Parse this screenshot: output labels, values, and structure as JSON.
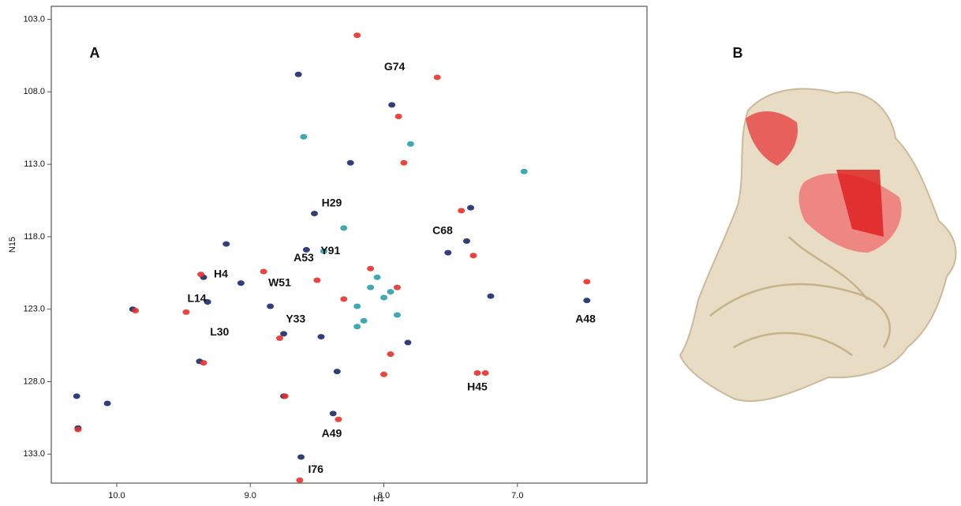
{
  "chart_data": {
    "type": "scatter",
    "panel_label": "A",
    "xlabel": "H1",
    "ylabel": "N15",
    "xlim": [
      10.49,
      6.03
    ],
    "ylim": [
      102.1,
      135.0
    ],
    "xticks": [
      {
        "value": 10,
        "label": "10.0"
      },
      {
        "value": 9,
        "label": "9.0"
      },
      {
        "value": 8,
        "label": "8.0"
      },
      {
        "value": 7,
        "label": "7.0"
      }
    ],
    "yticks": [
      {
        "value": 103,
        "label": "103.0"
      },
      {
        "value": 108,
        "label": "108.0"
      },
      {
        "value": 113,
        "label": "113.0"
      },
      {
        "value": 118,
        "label": "118.0"
      },
      {
        "value": 123,
        "label": "123.0"
      },
      {
        "value": 128,
        "label": "128.0"
      },
      {
        "value": 133,
        "label": "133.0"
      }
    ],
    "series": [
      {
        "color": "#1a2a6c",
        "x": [
          10.29,
          9.88,
          9.35,
          9.32,
          9.38,
          8.75,
          8.38,
          8.62,
          7.94,
          7.52,
          6.48,
          8.64,
          8.25,
          8.52,
          7.35,
          8.47,
          7.82,
          9.07,
          8.75,
          7.38,
          7.2,
          8.58,
          8.85,
          8.35,
          9.18,
          10.3,
          10.07
        ],
        "values": [
          131.2,
          123.0,
          120.8,
          122.5,
          126.6,
          129.0,
          130.2,
          133.2,
          108.9,
          119.1,
          122.4,
          106.8,
          112.9,
          116.4,
          116.0,
          124.9,
          125.3,
          121.2,
          124.7,
          118.3,
          122.1,
          118.9,
          122.8,
          127.3,
          118.5,
          129.0,
          129.5
        ]
      },
      {
        "color": "#2aa0a8",
        "x": [
          8.1,
          8.0,
          8.2,
          7.9,
          8.45,
          8.3,
          7.8,
          8.6,
          8.2,
          6.95,
          8.05,
          7.95,
          8.15
        ],
        "values": [
          121.5,
          122.2,
          122.8,
          123.4,
          119.0,
          117.4,
          111.6,
          111.1,
          124.2,
          113.5,
          120.8,
          121.8,
          123.8
        ]
      },
      {
        "color": "#e8302a",
        "x": [
          10.29,
          9.86,
          9.37,
          9.48,
          9.35,
          8.74,
          8.34,
          8.63,
          7.89,
          7.33,
          6.48,
          7.3,
          7.24,
          8.2,
          7.6,
          7.85,
          8.1,
          8.5,
          7.9,
          8.3,
          7.95,
          8.9,
          8.78,
          7.42,
          8.0
        ],
        "values": [
          131.3,
          123.1,
          120.6,
          123.2,
          126.7,
          129.0,
          130.6,
          134.8,
          109.7,
          119.3,
          121.1,
          127.4,
          127.4,
          104.1,
          107.0,
          112.9,
          120.2,
          121.0,
          121.5,
          122.3,
          126.1,
          120.4,
          125.0,
          116.2,
          127.5
        ]
      }
    ],
    "annotations": [
      {
        "text": "G74",
        "x": 7.92,
        "y": 106.3
      },
      {
        "text": "H29",
        "x": 8.39,
        "y": 115.7
      },
      {
        "text": "C68",
        "x": 7.56,
        "y": 117.6
      },
      {
        "text": "Y91",
        "x": 8.4,
        "y": 119.0
      },
      {
        "text": "A53",
        "x": 8.6,
        "y": 119.5
      },
      {
        "text": "W51",
        "x": 8.78,
        "y": 121.2
      },
      {
        "text": "H4",
        "x": 9.22,
        "y": 120.6
      },
      {
        "text": "L14",
        "x": 9.4,
        "y": 122.3
      },
      {
        "text": "L30",
        "x": 9.23,
        "y": 124.6
      },
      {
        "text": "Y33",
        "x": 8.66,
        "y": 123.7
      },
      {
        "text": "A48",
        "x": 6.49,
        "y": 123.7
      },
      {
        "text": "H45",
        "x": 7.3,
        "y": 128.4
      },
      {
        "text": "A49",
        "x": 8.39,
        "y": 131.6
      },
      {
        "text": "I76",
        "x": 8.51,
        "y": 134.1
      }
    ]
  },
  "figure_b": {
    "panel_label": "B"
  }
}
